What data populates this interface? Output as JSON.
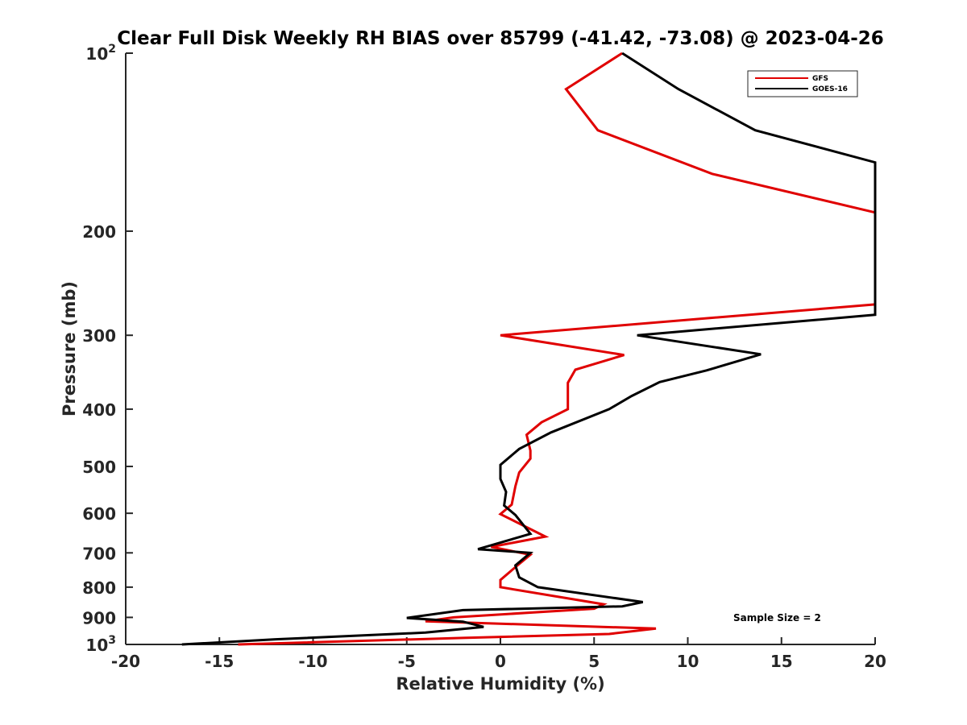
{
  "chart_data": {
    "type": "line",
    "title": "Clear Full Disk Weekly RH BIAS over 85799 (-41.42, -73.08) @ 2023-04-26",
    "xlabel": "Relative Humidity (%)",
    "ylabel": "Pressure (mb)",
    "xlim": [
      -20,
      20
    ],
    "ylim": [
      100,
      1000
    ],
    "yscale": "log",
    "y_reversed": true,
    "grid": false,
    "legend_position": "top-right",
    "x_ticks": [
      "-20",
      "-15",
      "-10",
      "-5",
      "0",
      "5",
      "10",
      "15",
      "20"
    ],
    "y_ticks": [
      {
        "value": 100,
        "base": "10",
        "exp": "2"
      },
      {
        "value": 200,
        "label": "200"
      },
      {
        "value": 300,
        "label": "300"
      },
      {
        "value": 400,
        "label": "400"
      },
      {
        "value": 500,
        "label": "500"
      },
      {
        "value": 600,
        "label": "600"
      },
      {
        "value": 700,
        "label": "700"
      },
      {
        "value": 800,
        "label": "800"
      },
      {
        "value": 900,
        "label": "900"
      },
      {
        "value": 1000,
        "base": "10",
        "exp": "3"
      }
    ],
    "annotation": "Sample Size = 2",
    "series": [
      {
        "name": "GFS",
        "color": "#e00000",
        "points": [
          [
            6.5,
            100
          ],
          [
            3.5,
            115
          ],
          [
            5.2,
            135
          ],
          [
            11.3,
            160
          ],
          [
            20,
            186
          ],
          [
            20,
            266
          ],
          [
            0,
            300
          ],
          [
            6.6,
            324
          ],
          [
            4,
            343
          ],
          [
            3.6,
            361
          ],
          [
            3.6,
            400
          ],
          [
            2.2,
            421
          ],
          [
            1.4,
            442
          ],
          [
            1.6,
            470
          ],
          [
            1.6,
            485
          ],
          [
            1,
            512
          ],
          [
            0.8,
            540
          ],
          [
            0.6,
            580
          ],
          [
            0,
            602
          ],
          [
            2.4,
            657
          ],
          [
            -0.5,
            684
          ],
          [
            1.6,
            705
          ],
          [
            0.8,
            740
          ],
          [
            0,
            778
          ],
          [
            0,
            800
          ],
          [
            5.5,
            855
          ],
          [
            5,
            870
          ],
          [
            -2.5,
            900
          ],
          [
            -4,
            914
          ],
          [
            8.3,
            940
          ],
          [
            5.8,
            960
          ],
          [
            -2,
            975
          ],
          [
            -14,
            1000
          ]
        ]
      },
      {
        "name": "GOES-16",
        "color": "#000000",
        "points": [
          [
            6.5,
            100
          ],
          [
            9.5,
            115
          ],
          [
            13.6,
            135
          ],
          [
            20,
            153
          ],
          [
            20,
            277
          ],
          [
            7.3,
            300
          ],
          [
            13.9,
            323
          ],
          [
            11,
            344
          ],
          [
            8.5,
            360
          ],
          [
            7,
            380
          ],
          [
            5.8,
            400
          ],
          [
            2.7,
            438
          ],
          [
            1,
            467
          ],
          [
            0,
            497
          ],
          [
            0,
            525
          ],
          [
            0.3,
            552
          ],
          [
            0.2,
            582
          ],
          [
            0.8,
            604
          ],
          [
            1.6,
            650
          ],
          [
            -1.2,
            690
          ],
          [
            1.6,
            700
          ],
          [
            0.8,
            735
          ],
          [
            1,
            770
          ],
          [
            2,
            800
          ],
          [
            7.6,
            848
          ],
          [
            6.5,
            862
          ],
          [
            -2,
            875
          ],
          [
            -5,
            902
          ],
          [
            -2,
            915
          ],
          [
            -0.9,
            934
          ],
          [
            -4,
            955
          ],
          [
            -12,
            980
          ],
          [
            -17,
            1000
          ]
        ]
      }
    ]
  }
}
